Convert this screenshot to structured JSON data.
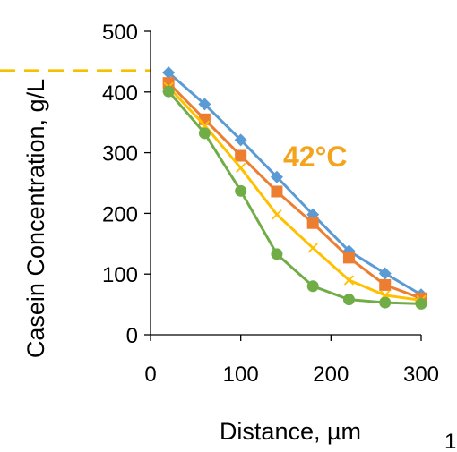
{
  "chart_data": {
    "type": "line",
    "title": "",
    "xlabel": "Distance, µm",
    "ylabel": "Casein Concentration, g/L",
    "xlim": [
      0,
      300
    ],
    "ylim": [
      0,
      500
    ],
    "xticks": [
      0,
      100,
      200,
      300
    ],
    "yticks": [
      0,
      100,
      200,
      300,
      400,
      500
    ],
    "grid": false,
    "legend": "none",
    "annotation": {
      "text": "42°C",
      "color": "#F4A41C"
    },
    "reference_line": {
      "y": 435,
      "color": "#F5C000",
      "style": "dashed"
    },
    "page_fragment": "1",
    "x": [
      20,
      60,
      100,
      140,
      180,
      220,
      260,
      300
    ],
    "series": [
      {
        "values": [
          432,
          380,
          321,
          260,
          198,
          138,
          101,
          66
        ],
        "color": "#5B9BD5",
        "marker": "diamond"
      },
      {
        "values": [
          415,
          355,
          295,
          236,
          184,
          127,
          82,
          60
        ],
        "color": "#ED7D31",
        "marker": "square"
      },
      {
        "values": [
          408,
          345,
          275,
          198,
          143,
          90,
          65,
          57
        ],
        "color": "#FFC000",
        "marker": "x"
      },
      {
        "values": [
          401,
          332,
          237,
          133,
          80,
          58,
          53,
          51
        ],
        "color": "#70AD47",
        "marker": "circle"
      }
    ]
  }
}
